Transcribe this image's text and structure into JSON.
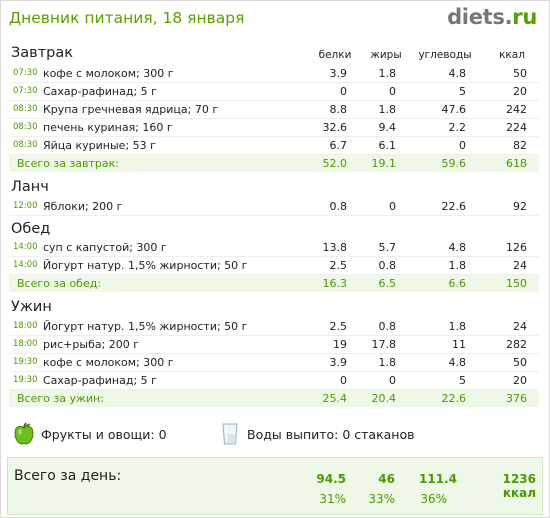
{
  "header": {
    "title": "Дневник питания, 18 января",
    "logo_name": "diets",
    "logo_dot": ".",
    "logo_tld": "ru"
  },
  "columns": {
    "protein": "белки",
    "fat": "жиры",
    "carbs": "углеводы",
    "kcal": "ккал"
  },
  "meals": {
    "breakfast": {
      "title": "Завтрак",
      "items": [
        {
          "time": "07:30",
          "name": "кофе с молоком; 300 г",
          "protein": "3.9",
          "fat": "1.8",
          "carbs": "4.8",
          "kcal": "50"
        },
        {
          "time": "07:30",
          "name": "Сахар-рафинад; 5 г",
          "protein": "0",
          "fat": "0",
          "carbs": "5",
          "kcal": "20"
        },
        {
          "time": "08:30",
          "name": "Крупа гречневая ядрица; 70 г",
          "protein": "8.8",
          "fat": "1.8",
          "carbs": "47.6",
          "kcal": "242"
        },
        {
          "time": "08:30",
          "name": "печень куриная; 160 г",
          "protein": "32.6",
          "fat": "9.4",
          "carbs": "2.2",
          "kcal": "224"
        },
        {
          "time": "08:30",
          "name": "Яйца куриные; 53 г",
          "protein": "6.7",
          "fat": "6.1",
          "carbs": "0",
          "kcal": "82"
        }
      ],
      "total": {
        "label": "Всего за завтрак:",
        "protein": "52.0",
        "fat": "19.1",
        "carbs": "59.6",
        "kcal": "618"
      }
    },
    "lunch": {
      "title": "Ланч",
      "items": [
        {
          "time": "12:00",
          "name": "Яблоки; 200 г",
          "protein": "0.8",
          "fat": "0",
          "carbs": "22.6",
          "kcal": "92"
        }
      ]
    },
    "dinner": {
      "title": "Обед",
      "items": [
        {
          "time": "14:00",
          "name": "суп с капустой; 300 г",
          "protein": "13.8",
          "fat": "5.7",
          "carbs": "4.8",
          "kcal": "126"
        },
        {
          "time": "14:00",
          "name": "Йогурт натур. 1,5% жирности; 50 г",
          "protein": "2.5",
          "fat": "0.8",
          "carbs": "1.8",
          "kcal": "24"
        }
      ],
      "total": {
        "label": "Всего за обед:",
        "protein": "16.3",
        "fat": "6.5",
        "carbs": "6.6",
        "kcal": "150"
      }
    },
    "supper": {
      "title": "Ужин",
      "items": [
        {
          "time": "18:00",
          "name": "Йогурт натур. 1,5% жирности; 50 г",
          "protein": "2.5",
          "fat": "0.8",
          "carbs": "1.8",
          "kcal": "24"
        },
        {
          "time": "18:00",
          "name": "рис+рыба; 200 г",
          "protein": "19",
          "fat": "17.8",
          "carbs": "11",
          "kcal": "282"
        },
        {
          "time": "19:30",
          "name": "кофе с молоком; 300 г",
          "protein": "3.9",
          "fat": "1.8",
          "carbs": "4.8",
          "kcal": "50"
        },
        {
          "time": "19:30",
          "name": "Сахар-рафинад; 5 г",
          "protein": "0",
          "fat": "0",
          "carbs": "5",
          "kcal": "20"
        }
      ],
      "total": {
        "label": "Всего за ужин:",
        "protein": "25.4",
        "fat": "20.4",
        "carbs": "22.6",
        "kcal": "376"
      }
    }
  },
  "extras": {
    "fruits": "Фрукты и овощи: 0",
    "water": "Воды выпито: 0 стаканов"
  },
  "day_total": {
    "label": "Всего за день:",
    "protein": "94.5",
    "fat": "46",
    "carbs": "111.4",
    "kcal": "1236 ккал",
    "protein_pct": "31%",
    "fat_pct": "33%",
    "carbs_pct": "36%"
  },
  "colors": {
    "accent": "#5aa000",
    "total_bg": "#eef7e8"
  },
  "icons": {
    "fruits": "green-apple-icon",
    "water": "water-glass-icon"
  }
}
